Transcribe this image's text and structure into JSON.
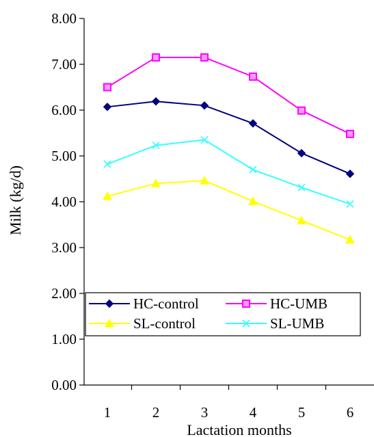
{
  "chart_data": {
    "type": "line",
    "title": "",
    "xlabel": "Lactation months",
    "ylabel": "Milk (kg/d)",
    "categories": [
      "1",
      "2",
      "3",
      "4",
      "5",
      "6"
    ],
    "ylim": [
      0,
      8
    ],
    "yticks": [
      "0.00",
      "1.00",
      "2.00",
      "3.00",
      "4.00",
      "5.00",
      "6.00",
      "7.00",
      "8.00"
    ],
    "grid": false,
    "legend_position": "lower-center",
    "series": [
      {
        "name": "HC-control",
        "color": "#000080",
        "marker": "diamond",
        "values": [
          6.07,
          6.19,
          6.1,
          5.71,
          5.06,
          4.61
        ]
      },
      {
        "name": "HC-UMB",
        "color": "#FF00FF",
        "marker": "square",
        "values": [
          6.5,
          7.15,
          7.15,
          6.73,
          5.99,
          5.48
        ]
      },
      {
        "name": "SL-control",
        "color": "#FFFF00",
        "marker": "triangle",
        "values": [
          4.12,
          4.4,
          4.46,
          4.01,
          3.59,
          3.17
        ]
      },
      {
        "name": "SL-UMB",
        "color": "#33FFFF",
        "marker": "x",
        "values": [
          4.82,
          5.23,
          5.35,
          4.7,
          4.31,
          3.95
        ]
      }
    ]
  }
}
